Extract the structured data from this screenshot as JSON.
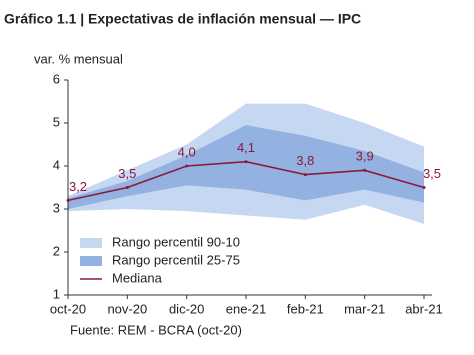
{
  "chart_data": {
    "type": "line",
    "title": "Gráfico 1.1 | Expectativas de inflación mensual — IPC",
    "y_label": "var. % mensual",
    "source": "Fuente: REM - BCRA (oct-20)",
    "categories": [
      "oct-20",
      "nov-20",
      "dic-20",
      "ene-21",
      "feb-21",
      "mar-21",
      "abr-21"
    ],
    "ylim": [
      1,
      6
    ],
    "yticks": [
      1,
      2,
      3,
      4,
      5,
      6
    ],
    "grid": false,
    "series": [
      {
        "name": "Rango percentil 90-10",
        "color": "#c6d7f1",
        "low": [
          2.95,
          3.0,
          2.95,
          2.85,
          2.75,
          3.1,
          2.65
        ],
        "high": [
          3.3,
          3.9,
          4.5,
          5.45,
          5.45,
          5.0,
          4.45
        ]
      },
      {
        "name": "Rango percentil 25-75",
        "color": "#93b1e1",
        "low": [
          3.0,
          3.3,
          3.55,
          3.45,
          3.2,
          3.45,
          3.15
        ],
        "high": [
          3.25,
          3.65,
          4.25,
          4.95,
          4.7,
          4.35,
          3.85
        ]
      },
      {
        "name": "Mediana",
        "color": "#8b1a3a",
        "values": [
          3.2,
          3.5,
          4.0,
          4.1,
          3.8,
          3.9,
          3.5
        ],
        "value_labels": [
          "3,2",
          "3,5",
          "4,0",
          "4,1",
          "3,8",
          "3,9",
          "3,5"
        ]
      }
    ]
  }
}
